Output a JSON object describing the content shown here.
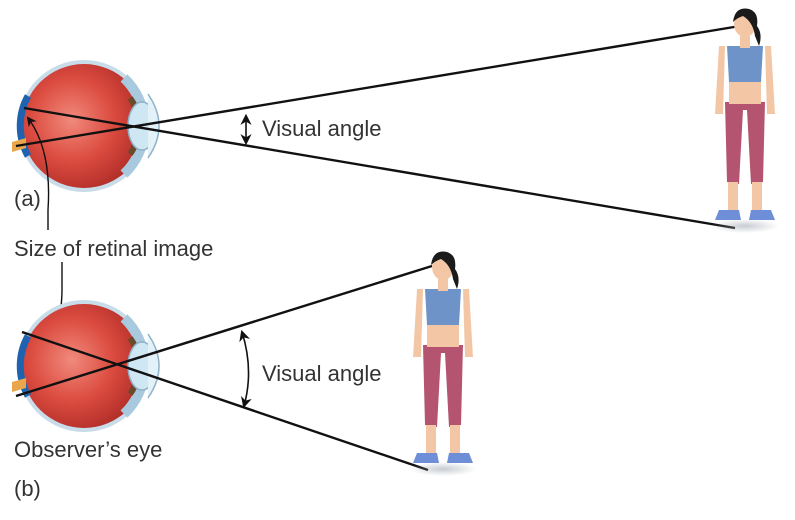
{
  "labels": {
    "panel_a": "(a)",
    "panel_b": "(b)",
    "visual_angle_a": "Visual angle",
    "visual_angle_b": "Visual angle",
    "retinal_image": "Size of retinal image",
    "observer_eye": "Observer’s eye"
  },
  "colors": {
    "eyeball": "#d8443b",
    "eyeball_inner": "#e86a5e",
    "eyeball_edge": "#b22e29",
    "sclera": "#b7d4e6",
    "retina": "#1f63b0",
    "optic_nerve": "#e8a74b",
    "lens": "#c9e3f1",
    "iris": "#6a4a2a",
    "ray_line": "#111111",
    "person_top": "#6d93c8",
    "person_pants": "#b45470",
    "person_skin": "#f3c7a6",
    "person_hair": "#1b1b1b",
    "shoe": "#6f8ed8"
  }
}
